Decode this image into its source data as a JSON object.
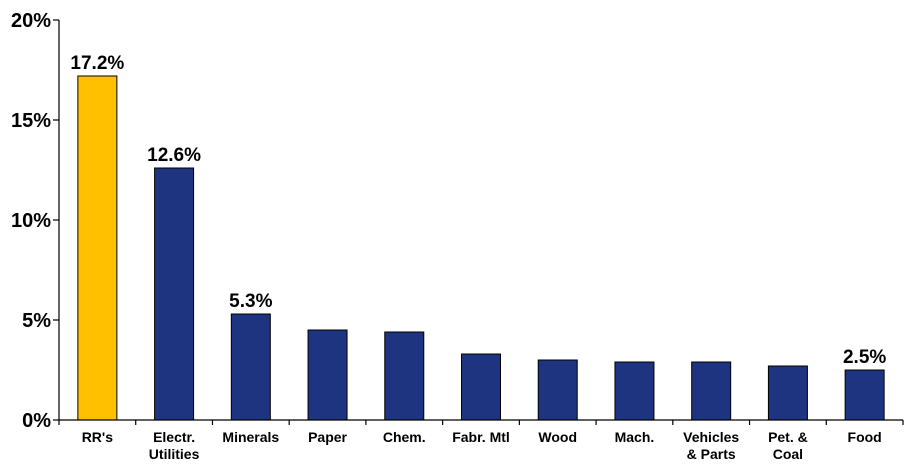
{
  "chart_data": {
    "type": "bar",
    "title": "",
    "xlabel": "",
    "ylabel": "",
    "ylim": [
      0,
      20
    ],
    "y_ticks": [
      "0%",
      "5%",
      "10%",
      "15%",
      "20%"
    ],
    "grid": false,
    "legend": "none",
    "categories": [
      [
        "RR's"
      ],
      [
        "Electr.",
        "Utilities"
      ],
      [
        "Minerals"
      ],
      [
        "Paper"
      ],
      [
        "Chem."
      ],
      [
        "Fabr. Mtl"
      ],
      [
        "Wood"
      ],
      [
        "Mach."
      ],
      [
        "Vehicles",
        "& Parts"
      ],
      [
        "Pet. &",
        "Coal"
      ],
      [
        "Food"
      ]
    ],
    "values": [
      17.2,
      12.6,
      5.3,
      4.5,
      4.4,
      3.3,
      3.0,
      2.9,
      2.9,
      2.7,
      2.5
    ],
    "data_labels": [
      "17.2%",
      "12.6%",
      "5.3%",
      "",
      "",
      "",
      "",
      "",
      "",
      "",
      "2.5%"
    ],
    "colors": {
      "highlight": "#FFC000",
      "bar": "#1F3480"
    },
    "bar_colors": [
      "highlight",
      "bar",
      "bar",
      "bar",
      "bar",
      "bar",
      "bar",
      "bar",
      "bar",
      "bar",
      "bar"
    ]
  }
}
